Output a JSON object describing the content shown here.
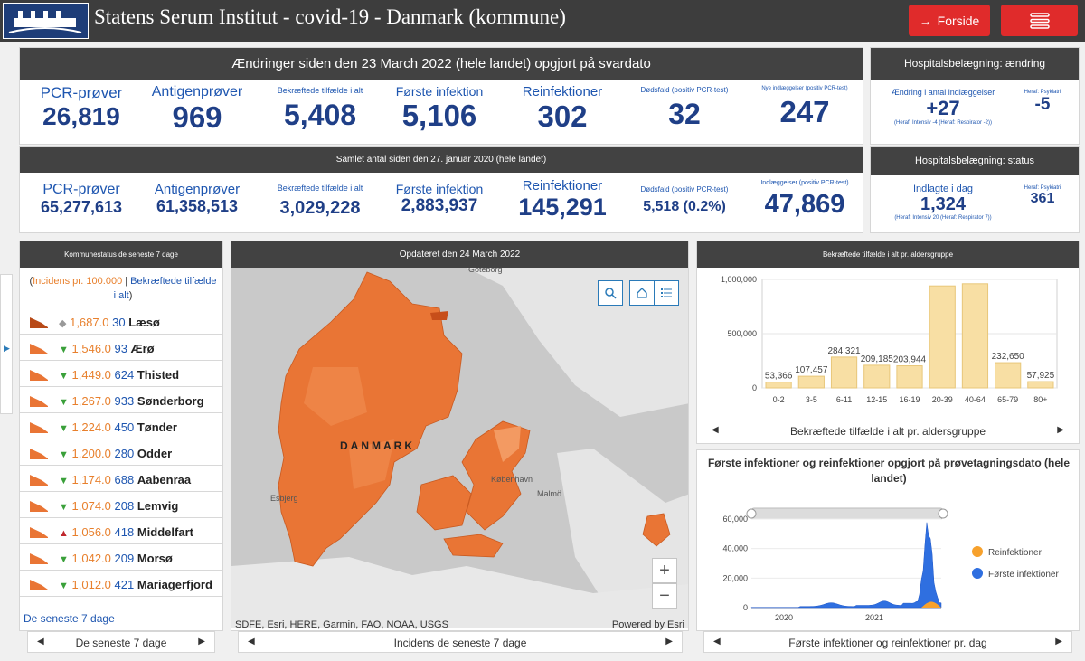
{
  "header": {
    "title": "Statens Serum Institut - covid-19 - Danmark (kommune)",
    "home_label": "Forside",
    "home_icon": "arrow-right-icon",
    "menu_icon": "menu-icon"
  },
  "changes": {
    "title": "Ændringer siden den 23 March 2022 (hele landet) opgjort på svardato",
    "pcr_label": "PCR-prøver",
    "pcr_value": "26,819",
    "antigen_label": "Antigenprøver",
    "antigen_value": "969",
    "confirmed_label": "Bekræftede tilfælde i alt",
    "confirmed_value": "5,408",
    "first_label": "Første infektion",
    "first_value": "5,106",
    "reinf_label": "Reinfektioner",
    "reinf_value": "302",
    "deaths_label": "Dødsfald (positiv PCR-test)",
    "deaths_value": "32",
    "admissions_label": "Nye indlæggelser (positiv PCR-test)",
    "admissions_value": "247"
  },
  "totals": {
    "title": "Samlet antal siden den 27. januar 2020 (hele landet)",
    "pcr_label": "PCR-prøver",
    "pcr_value": "65,277,613",
    "antigen_label": "Antigenprøver",
    "antigen_value": "61,358,513",
    "confirmed_label": "Bekræftede tilfælde i alt",
    "confirmed_value": "3,029,228",
    "first_label": "Første infektion",
    "first_value": "2,883,937",
    "reinf_label": "Reinfektioner",
    "reinf_value": "145,291",
    "deaths_label": "Dødsfald (positiv PCR-test)",
    "deaths_value": "5,518 (0.2%)",
    "admissions_label": "Indlæggelser (positiv PCR-test)",
    "admissions_value": "47,869"
  },
  "hosp_change": {
    "title": "Hospitalsbelægning: ændring",
    "label": "Ændring i antal indlæggelser",
    "value": "+27",
    "sub": "(Heraf: Intensiv -4 (Heraf: Respirator -2))",
    "psych_label": "Heraf: Psykiatri",
    "psych_value": "-5"
  },
  "hosp_status": {
    "title": "Hospitalsbelægning: status",
    "label": "Indlagte i dag",
    "value": "1,324",
    "sub": "(Heraf: Intensiv 20 (Heraf: Respirator 7))",
    "psych_label": "Heraf: Psykiatri",
    "psych_value": "361"
  },
  "kommune_list": {
    "title": "Kommunestatus de seneste 7 dage",
    "legend_inc": "Incidens pr. 100.000",
    "legend_sep": "|",
    "legend_cnt": "Bekræftede tilfælde i alt",
    "legend_close": ")",
    "legend_open": "(",
    "rows": [
      {
        "trend": "◆",
        "trend_color": "#999999",
        "incidence": "1,687.0",
        "count": "30",
        "name": "Læsø"
      },
      {
        "trend": "▼",
        "trend_color": "#3aa03a",
        "incidence": "1,546.0",
        "count": "93",
        "name": "Ærø"
      },
      {
        "trend": "▼",
        "trend_color": "#3aa03a",
        "incidence": "1,449.0",
        "count": "624",
        "name": "Thisted"
      },
      {
        "trend": "▼",
        "trend_color": "#3aa03a",
        "incidence": "1,267.0",
        "count": "933",
        "name": "Sønderborg"
      },
      {
        "trend": "▼",
        "trend_color": "#3aa03a",
        "incidence": "1,224.0",
        "count": "450",
        "name": "Tønder"
      },
      {
        "trend": "▼",
        "trend_color": "#3aa03a",
        "incidence": "1,200.0",
        "count": "280",
        "name": "Odder"
      },
      {
        "trend": "▼",
        "trend_color": "#3aa03a",
        "incidence": "1,174.0",
        "count": "688",
        "name": "Aabenraa"
      },
      {
        "trend": "▼",
        "trend_color": "#3aa03a",
        "incidence": "1,074.0",
        "count": "208",
        "name": "Lemvig"
      },
      {
        "trend": "▲",
        "trend_color": "#c0282d",
        "incidence": "1,056.0",
        "count": "418",
        "name": "Middelfart"
      },
      {
        "trend": "▼",
        "trend_color": "#3aa03a",
        "incidence": "1,042.0",
        "count": "209",
        "name": "Morsø"
      },
      {
        "trend": "▼",
        "trend_color": "#3aa03a",
        "incidence": "1,012.0",
        "count": "421",
        "name": "Mariagerfjord"
      }
    ],
    "link": "De seneste 7 dage",
    "footer": "De seneste 7 dage"
  },
  "map": {
    "title": "Opdateret den 24 March 2022",
    "country_label": "DANMARK",
    "city_labels": [
      "Göteborg",
      "København",
      "Esbjerg",
      "Malmö"
    ],
    "attribution": "SDFE, Esri, HERE, Garmin, FAO, NOAA, USGS",
    "powered": "Powered by Esri",
    "footer": "Incidens de seneste 7 dage",
    "zoom_in": "+",
    "zoom_out": "−"
  },
  "age_chart_panel": {
    "title": "Bekræftede tilfælde i alt pr. aldersgruppe",
    "footer": "Bekræftede tilfælde i alt pr. aldersgruppe"
  },
  "time_chart_panel": {
    "title": "Første infektioner og reinfektioner opgjort på prøvetagningsdato (hele landet)",
    "footer": "Første infektioner og reinfektioner pr. dag"
  },
  "colors": {
    "accent_red": "#e02b2b",
    "header_dark": "#3d3d3d",
    "value_blue": "#1f3f87",
    "bar_fill": "#f8dfa4",
    "map_orange": "#e97535",
    "first_inf": "#2f6fe0",
    "reinf": "#f7a12c"
  },
  "chart_data": [
    {
      "type": "bar",
      "title": "Bekræftede tilfælde i alt pr. aldersgruppe",
      "categories": [
        "0-2",
        "3-5",
        "6-11",
        "12-15",
        "16-19",
        "20-39",
        "40-64",
        "65-79",
        "80+"
      ],
      "values": [
        53366,
        107457,
        284321,
        209185,
        203944,
        940000,
        960000,
        232650,
        57925
      ],
      "data_labels": [
        "53,366",
        "107,457",
        "284,321",
        "209,185",
        "203,944",
        "",
        "",
        "232,650",
        "57,925"
      ],
      "yticks": [
        "0",
        "500,000",
        "1,000,000"
      ],
      "ylim": [
        0,
        1000000
      ]
    },
    {
      "type": "area",
      "title": "Første infektioner og reinfektioner opgjort på prøvetagningsdato (hele landet)",
      "xticks": [
        "2020",
        "2021"
      ],
      "yticks": [
        "0",
        "20,000",
        "40,000",
        "60,000"
      ],
      "ylim": [
        0,
        60000
      ],
      "series": [
        {
          "name": "Reinfektioner",
          "color": "#f7a12c"
        },
        {
          "name": "Første infektioner",
          "color": "#2f6fe0"
        }
      ]
    }
  ]
}
